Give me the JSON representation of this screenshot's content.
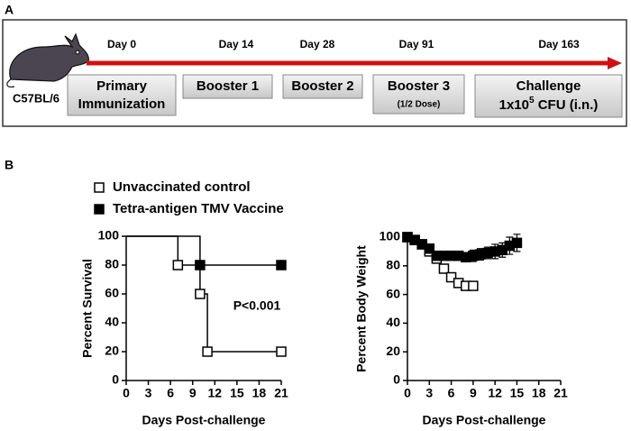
{
  "panel_labels": [
    "A",
    "B"
  ],
  "timeline": {
    "strain": "C57BL/6",
    "days": [
      "Day 0",
      "Day 14",
      "Day 28",
      "Day 91",
      "Day 163"
    ],
    "boxes": [
      {
        "lines": [
          "Primary",
          "Immunization"
        ]
      },
      {
        "lines": [
          "Booster 1"
        ]
      },
      {
        "lines": [
          "Booster 2"
        ]
      },
      {
        "lines": [
          "Booster 3"
        ],
        "note": "(1/2 Dose)"
      },
      {
        "lines": [
          "Challenge"
        ],
        "dose": [
          "1x10",
          "5",
          " CFU (i.n.)"
        ]
      }
    ]
  },
  "chart_data": [
    {
      "type": "step",
      "ylabel": "Percent Survival",
      "xlabel": "Days Post-challenge",
      "xlim": [
        0,
        21
      ],
      "ylim": [
        0,
        100
      ],
      "xticks": [
        0,
        3,
        6,
        9,
        12,
        15,
        18,
        21
      ],
      "yticks": [
        0,
        20,
        40,
        60,
        80,
        100
      ],
      "annotation": "P<0.001",
      "series": [
        {
          "name": "Unvaccinated control",
          "color": "#000000",
          "marker": "open",
          "x": [
            0,
            7,
            10,
            11,
            21
          ],
          "values": [
            100,
            80,
            60,
            20,
            20
          ]
        },
        {
          "name": "Tetra-antigen TMV Vaccine",
          "color": "#000000",
          "marker": "filled",
          "x": [
            0,
            10,
            21
          ],
          "values": [
            100,
            80,
            80
          ]
        }
      ]
    },
    {
      "type": "line",
      "ylabel": "Percent Body Weight",
      "xlabel": "Days Post-challenge",
      "xlim": [
        0,
        21
      ],
      "ylim": [
        0,
        100
      ],
      "xticks": [
        0,
        3,
        6,
        9,
        12,
        15,
        18,
        21
      ],
      "yticks": [
        0,
        20,
        40,
        60,
        80,
        100
      ],
      "series": [
        {
          "color": "#000000",
          "marker": "open",
          "x": [
            0,
            1,
            2,
            3,
            4,
            5,
            6,
            7,
            8,
            9
          ],
          "values": [
            100,
            98,
            95,
            90,
            85,
            78,
            72,
            68,
            66,
            66
          ],
          "errors": [
            1,
            2,
            2,
            3,
            3,
            3,
            3,
            3,
            3,
            3
          ]
        },
        {
          "color": "#000000",
          "marker": "filled",
          "x": [
            0,
            1,
            2,
            3,
            4,
            5,
            6,
            7,
            8,
            9,
            10,
            11,
            12,
            13,
            14,
            15
          ],
          "values": [
            100,
            98,
            95,
            92,
            87,
            87,
            87,
            87,
            86,
            87,
            88,
            89,
            90,
            91,
            94,
            96
          ],
          "errors": [
            1,
            2,
            2,
            3,
            3,
            3,
            3,
            3,
            3,
            4,
            4,
            4,
            5,
            5,
            6,
            6
          ]
        }
      ]
    }
  ]
}
